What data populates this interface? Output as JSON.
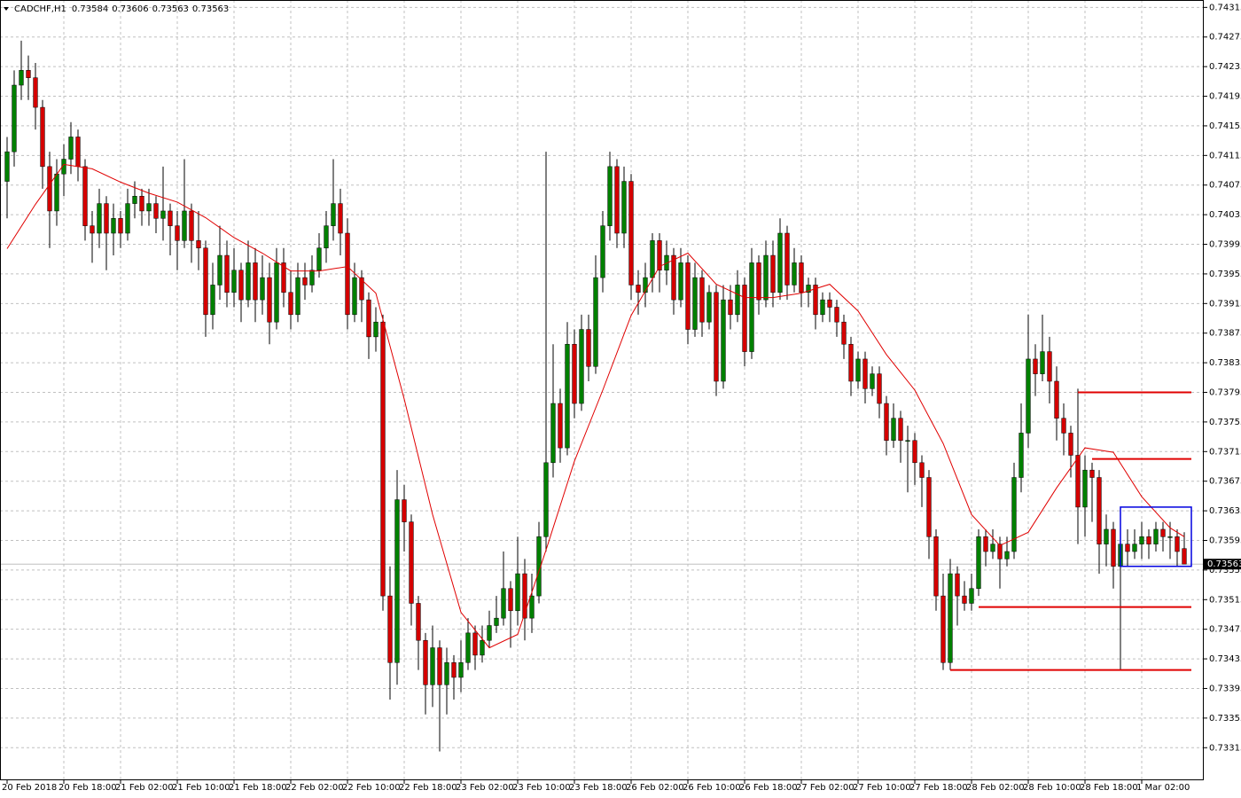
{
  "chart_data": {
    "type": "candlestick",
    "title": "CADCHF,H1",
    "xlim": [
      -1,
      168.75
    ],
    "ylim": [
      0.73271,
      0.74325
    ],
    "xticks": [
      {
        "value": 0,
        "label": "20 Feb 2018"
      },
      {
        "value": 8,
        "label": "20 Feb 18:00"
      },
      {
        "value": 16,
        "label": "21 Feb 02:00"
      },
      {
        "value": 24,
        "label": "21 Feb 10:00"
      },
      {
        "value": 32,
        "label": "21 Feb 18:00"
      },
      {
        "value": 40,
        "label": "22 Feb 02:00"
      },
      {
        "value": 48,
        "label": "22 Feb 10:00"
      },
      {
        "value": 56,
        "label": "22 Feb 18:00"
      },
      {
        "value": 64,
        "label": "23 Feb 02:00"
      },
      {
        "value": 72,
        "label": "23 Feb 10:00"
      },
      {
        "value": 80,
        "label": "23 Feb 18:00"
      },
      {
        "value": 88,
        "label": "26 Feb 02:00"
      },
      {
        "value": 96,
        "label": "26 Feb 10:00"
      },
      {
        "value": 104,
        "label": "26 Feb 18:00"
      },
      {
        "value": 112,
        "label": "27 Feb 02:00"
      },
      {
        "value": 120,
        "label": "27 Feb 10:00"
      },
      {
        "value": 128,
        "label": "27 Feb 18:00"
      },
      {
        "value": 136,
        "label": "28 Feb 02:00"
      },
      {
        "value": 144,
        "label": "28 Feb 10:00"
      },
      {
        "value": 152,
        "label": "28 Feb 18:00"
      },
      {
        "value": 160,
        "label": "1 Mar 02:00"
      }
    ],
    "yticks": [
      0.74315,
      0.74275,
      0.74235,
      0.74195,
      0.74155,
      0.74115,
      0.74075,
      0.74035,
      0.73995,
      0.73955,
      0.73915,
      0.73875,
      0.73835,
      0.73795,
      0.73755,
      0.73715,
      0.73675,
      0.73635,
      0.73595,
      0.73555,
      0.73515,
      0.73475,
      0.73435,
      0.73395,
      0.73355,
      0.73315
    ],
    "grid": true,
    "up_color": "#008000",
    "down_color": "#d40000",
    "ohlc": [
      [
        0.7408,
        0.7414,
        0.7403,
        0.7412
      ],
      [
        0.7412,
        0.7423,
        0.741,
        0.7421
      ],
      [
        0.7421,
        0.7427,
        0.7419,
        0.7423
      ],
      [
        0.7423,
        0.7425,
        0.7419,
        0.7422
      ],
      [
        0.7422,
        0.7424,
        0.7415,
        0.7418
      ],
      [
        0.7418,
        0.7419,
        0.7407,
        0.741
      ],
      [
        0.741,
        0.7412,
        0.7399,
        0.7404
      ],
      [
        0.7404,
        0.7411,
        0.7402,
        0.7409
      ],
      [
        0.7409,
        0.7413,
        0.7406,
        0.7411
      ],
      [
        0.7411,
        0.7416,
        0.7409,
        0.7414
      ],
      [
        0.7414,
        0.7415,
        0.7408,
        0.741
      ],
      [
        0.741,
        0.7411,
        0.74,
        0.7402
      ],
      [
        0.7402,
        0.7404,
        0.7397,
        0.7401
      ],
      [
        0.7401,
        0.7407,
        0.7399,
        0.7405
      ],
      [
        0.7405,
        0.7406,
        0.7396,
        0.7401
      ],
      [
        0.7401,
        0.7405,
        0.7398,
        0.7403
      ],
      [
        0.7403,
        0.7404,
        0.7399,
        0.7401
      ],
      [
        0.7401,
        0.7407,
        0.74,
        0.7405
      ],
      [
        0.7405,
        0.7408,
        0.7403,
        0.7406
      ],
      [
        0.7406,
        0.7407,
        0.7402,
        0.7404
      ],
      [
        0.7404,
        0.7407,
        0.7402,
        0.7405
      ],
      [
        0.7405,
        0.7406,
        0.7401,
        0.7403
      ],
      [
        0.7403,
        0.741,
        0.74,
        0.7404
      ],
      [
        0.7404,
        0.7405,
        0.7398,
        0.7402
      ],
      [
        0.7402,
        0.7404,
        0.7396,
        0.74
      ],
      [
        0.74,
        0.7411,
        0.7399,
        0.7404
      ],
      [
        0.7404,
        0.7405,
        0.7397,
        0.74
      ],
      [
        0.74,
        0.7404,
        0.7396,
        0.7399
      ],
      [
        0.7399,
        0.74,
        0.7387,
        0.739
      ],
      [
        0.739,
        0.7397,
        0.7388,
        0.7394
      ],
      [
        0.7394,
        0.7402,
        0.7392,
        0.7398
      ],
      [
        0.7398,
        0.74,
        0.7391,
        0.7393
      ],
      [
        0.7393,
        0.7399,
        0.7391,
        0.7396
      ],
      [
        0.7396,
        0.7397,
        0.7389,
        0.7392
      ],
      [
        0.7392,
        0.74,
        0.7391,
        0.7397
      ],
      [
        0.7397,
        0.7399,
        0.7389,
        0.7392
      ],
      [
        0.7392,
        0.7398,
        0.739,
        0.7395
      ],
      [
        0.7395,
        0.7397,
        0.7386,
        0.7389
      ],
      [
        0.7389,
        0.7399,
        0.7388,
        0.7397
      ],
      [
        0.7397,
        0.7399,
        0.7391,
        0.7393
      ],
      [
        0.7393,
        0.7396,
        0.7388,
        0.739
      ],
      [
        0.739,
        0.7397,
        0.7389,
        0.7395
      ],
      [
        0.7395,
        0.7397,
        0.7392,
        0.7394
      ],
      [
        0.7394,
        0.7398,
        0.7393,
        0.7396
      ],
      [
        0.7396,
        0.7401,
        0.7395,
        0.7399
      ],
      [
        0.7399,
        0.7404,
        0.7397,
        0.7402
      ],
      [
        0.7402,
        0.7411,
        0.74,
        0.7405
      ],
      [
        0.7405,
        0.7407,
        0.7398,
        0.7401
      ],
      [
        0.7401,
        0.7403,
        0.7388,
        0.739
      ],
      [
        0.739,
        0.7397,
        0.7389,
        0.7395
      ],
      [
        0.7395,
        0.7396,
        0.7389,
        0.7392
      ],
      [
        0.7392,
        0.7393,
        0.7384,
        0.7387
      ],
      [
        0.7387,
        0.7391,
        0.7385,
        0.7389
      ],
      [
        0.7389,
        0.739,
        0.735,
        0.7352
      ],
      [
        0.7352,
        0.7356,
        0.7338,
        0.7343
      ],
      [
        0.7343,
        0.7369,
        0.734,
        0.7365
      ],
      [
        0.7365,
        0.7367,
        0.7358,
        0.7362
      ],
      [
        0.7362,
        0.7363,
        0.7348,
        0.7351
      ],
      [
        0.7351,
        0.7352,
        0.7342,
        0.7346
      ],
      [
        0.7346,
        0.7347,
        0.7336,
        0.734
      ],
      [
        0.734,
        0.7348,
        0.7337,
        0.7345
      ],
      [
        0.7345,
        0.7346,
        0.7331,
        0.734
      ],
      [
        0.734,
        0.7345,
        0.7336,
        0.7343
      ],
      [
        0.7343,
        0.7344,
        0.7338,
        0.7341
      ],
      [
        0.7341,
        0.7346,
        0.7339,
        0.7343
      ],
      [
        0.7343,
        0.7349,
        0.7342,
        0.7347
      ],
      [
        0.7347,
        0.7348,
        0.7342,
        0.7344
      ],
      [
        0.7344,
        0.7348,
        0.7343,
        0.7346
      ],
      [
        0.7346,
        0.735,
        0.7345,
        0.7348
      ],
      [
        0.7348,
        0.7352,
        0.7347,
        0.7349
      ],
      [
        0.7349,
        0.7358,
        0.7348,
        0.7353
      ],
      [
        0.7353,
        0.7354,
        0.7345,
        0.735
      ],
      [
        0.735,
        0.736,
        0.7348,
        0.7355
      ],
      [
        0.7355,
        0.7357,
        0.7346,
        0.7349
      ],
      [
        0.7349,
        0.7355,
        0.7347,
        0.7352
      ],
      [
        0.7352,
        0.7362,
        0.7351,
        0.736
      ],
      [
        0.736,
        0.7412,
        0.7358,
        0.737
      ],
      [
        0.737,
        0.7386,
        0.7368,
        0.7378
      ],
      [
        0.7378,
        0.738,
        0.737,
        0.7372
      ],
      [
        0.7372,
        0.7389,
        0.7371,
        0.7386
      ],
      [
        0.7386,
        0.7388,
        0.7376,
        0.7378
      ],
      [
        0.7378,
        0.739,
        0.7377,
        0.7388
      ],
      [
        0.7388,
        0.739,
        0.7381,
        0.7383
      ],
      [
        0.7383,
        0.7398,
        0.7382,
        0.7395
      ],
      [
        0.7395,
        0.7404,
        0.7393,
        0.7402
      ],
      [
        0.7402,
        0.7412,
        0.74,
        0.741
      ],
      [
        0.741,
        0.7411,
        0.7399,
        0.7401
      ],
      [
        0.7401,
        0.741,
        0.7399,
        0.7408
      ],
      [
        0.7408,
        0.7409,
        0.7392,
        0.7394
      ],
      [
        0.7394,
        0.7396,
        0.739,
        0.7393
      ],
      [
        0.7393,
        0.7397,
        0.7391,
        0.7395
      ],
      [
        0.7395,
        0.7401,
        0.7393,
        0.74
      ],
      [
        0.74,
        0.7401,
        0.7393,
        0.7396
      ],
      [
        0.7396,
        0.74,
        0.7394,
        0.7398
      ],
      [
        0.7398,
        0.7399,
        0.739,
        0.7392
      ],
      [
        0.7392,
        0.7399,
        0.7391,
        0.7397
      ],
      [
        0.7397,
        0.7398,
        0.7386,
        0.7388
      ],
      [
        0.7388,
        0.7397,
        0.7387,
        0.7395
      ],
      [
        0.7395,
        0.7396,
        0.7387,
        0.7389
      ],
      [
        0.7389,
        0.7394,
        0.7388,
        0.7393
      ],
      [
        0.7393,
        0.7394,
        0.7379,
        0.7381
      ],
      [
        0.7381,
        0.7394,
        0.738,
        0.7392
      ],
      [
        0.7392,
        0.7394,
        0.7388,
        0.739
      ],
      [
        0.739,
        0.7396,
        0.7389,
        0.7394
      ],
      [
        0.7394,
        0.7395,
        0.7383,
        0.7385
      ],
      [
        0.7385,
        0.7399,
        0.7384,
        0.7397
      ],
      [
        0.7397,
        0.7398,
        0.739,
        0.7392
      ],
      [
        0.7392,
        0.74,
        0.7391,
        0.7398
      ],
      [
        0.7398,
        0.74,
        0.7391,
        0.7393
      ],
      [
        0.7393,
        0.7403,
        0.7392,
        0.7401
      ],
      [
        0.7401,
        0.7402,
        0.7392,
        0.7394
      ],
      [
        0.7394,
        0.7399,
        0.7393,
        0.7397
      ],
      [
        0.7397,
        0.7398,
        0.7391,
        0.7393
      ],
      [
        0.7393,
        0.7395,
        0.7391,
        0.7394
      ],
      [
        0.7394,
        0.7395,
        0.7388,
        0.739
      ],
      [
        0.739,
        0.7393,
        0.7389,
        0.7392
      ],
      [
        0.7392,
        0.7393,
        0.7389,
        0.7391
      ],
      [
        0.7391,
        0.7392,
        0.7387,
        0.7389
      ],
      [
        0.7389,
        0.739,
        0.7384,
        0.7386
      ],
      [
        0.7386,
        0.7387,
        0.7379,
        0.7381
      ],
      [
        0.7381,
        0.7385,
        0.738,
        0.7384
      ],
      [
        0.7384,
        0.7385,
        0.7378,
        0.738
      ],
      [
        0.738,
        0.7383,
        0.7379,
        0.7382
      ],
      [
        0.7382,
        0.7383,
        0.7376,
        0.7378
      ],
      [
        0.7378,
        0.7379,
        0.7371,
        0.7373
      ],
      [
        0.7373,
        0.7378,
        0.7372,
        0.7376
      ],
      [
        0.7376,
        0.7377,
        0.737,
        0.7373
      ],
      [
        0.7373,
        0.7375,
        0.7366,
        0.7373
      ],
      [
        0.7373,
        0.7374,
        0.7367,
        0.737
      ],
      [
        0.737,
        0.7371,
        0.7364,
        0.7368
      ],
      [
        0.7368,
        0.7369,
        0.7357,
        0.736
      ],
      [
        0.736,
        0.7361,
        0.735,
        0.7352
      ],
      [
        0.7352,
        0.7355,
        0.7342,
        0.7343
      ],
      [
        0.7343,
        0.7357,
        0.7342,
        0.7355
      ],
      [
        0.7355,
        0.7356,
        0.7348,
        0.7352
      ],
      [
        0.7352,
        0.7354,
        0.735,
        0.7351
      ],
      [
        0.7351,
        0.7355,
        0.735,
        0.7353
      ],
      [
        0.7353,
        0.7361,
        0.7352,
        0.736
      ],
      [
        0.736,
        0.7361,
        0.7356,
        0.7358
      ],
      [
        0.7358,
        0.7361,
        0.7357,
        0.7359
      ],
      [
        0.7359,
        0.736,
        0.7353,
        0.7357
      ],
      [
        0.7357,
        0.736,
        0.7356,
        0.7358
      ],
      [
        0.7358,
        0.737,
        0.7357,
        0.7368
      ],
      [
        0.7368,
        0.7378,
        0.7366,
        0.7374
      ],
      [
        0.7374,
        0.739,
        0.7372,
        0.7384
      ],
      [
        0.7384,
        0.7386,
        0.7379,
        0.7382
      ],
      [
        0.7382,
        0.739,
        0.7381,
        0.7385
      ],
      [
        0.7385,
        0.7387,
        0.7378,
        0.7381
      ],
      [
        0.7381,
        0.7383,
        0.7373,
        0.7376
      ],
      [
        0.7376,
        0.7378,
        0.7371,
        0.7374
      ],
      [
        0.7374,
        0.7375,
        0.7368,
        0.7371
      ],
      [
        0.7371,
        0.738,
        0.7359,
        0.7364
      ],
      [
        0.7364,
        0.7371,
        0.736,
        0.7369
      ],
      [
        0.7369,
        0.737,
        0.7362,
        0.7368
      ],
      [
        0.7368,
        0.7369,
        0.7355,
        0.7359
      ],
      [
        0.7359,
        0.7363,
        0.7356,
        0.7361
      ],
      [
        0.7361,
        0.7362,
        0.7353,
        0.7356
      ],
      [
        0.7356,
        0.736,
        0.7342,
        0.7359
      ],
      [
        0.7359,
        0.7361,
        0.7356,
        0.7358
      ],
      [
        0.7358,
        0.7361,
        0.7357,
        0.7359
      ],
      [
        0.7359,
        0.7362,
        0.7357,
        0.736
      ],
      [
        0.736,
        0.7361,
        0.7357,
        0.7359
      ],
      [
        0.7359,
        0.7362,
        0.7358,
        0.7361
      ],
      [
        0.7361,
        0.7362,
        0.7358,
        0.736
      ],
      [
        0.736,
        0.7362,
        0.7357,
        0.736
      ],
      [
        0.736,
        0.7361,
        0.7356,
        0.7358
      ],
      [
        0.73584,
        0.73606,
        0.73563,
        0.73563
      ]
    ],
    "ma": {
      "color": "#e00000",
      "x": [
        0,
        4,
        8,
        12,
        16,
        20,
        24,
        28,
        32,
        36,
        40,
        44,
        48,
        52,
        56,
        60,
        64,
        68,
        72,
        76,
        80,
        84,
        88,
        92,
        96,
        100,
        104,
        108,
        112,
        116,
        120,
        124,
        128,
        132,
        136,
        140,
        144,
        148,
        152,
        156,
        160,
        164,
        166
      ],
      "values": [
        0.73989,
        0.74049,
        0.74103,
        0.74097,
        0.74079,
        0.74064,
        0.74052,
        0.74031,
        0.74004,
        0.73983,
        0.73959,
        0.73959,
        0.73965,
        0.73929,
        0.73786,
        0.7363,
        0.73498,
        0.7345,
        0.73468,
        0.73582,
        0.73702,
        0.73798,
        0.73899,
        0.73965,
        0.73983,
        0.73941,
        0.73923,
        0.73923,
        0.73929,
        0.73941,
        0.73905,
        0.73846,
        0.73798,
        0.73726,
        0.7363,
        0.73588,
        0.73606,
        0.73666,
        0.7372,
        0.73714,
        0.73654,
        0.73612,
        0.736
      ]
    },
    "levels": [
      {
        "price": 0.73795,
        "start": 151,
        "end": 167,
        "color": "#e00000"
      },
      {
        "price": 0.73705,
        "start": 153,
        "end": 167,
        "color": "#e00000"
      },
      {
        "price": 0.73505,
        "start": 137,
        "end": 167,
        "color": "#e00000"
      },
      {
        "price": 0.7342,
        "start": 133,
        "end": 167,
        "color": "#e00000"
      }
    ],
    "box": {
      "top": 0.7364,
      "bottom": 0.7356,
      "start": 157,
      "end": 167,
      "color": "#0000e0"
    }
  }
}
